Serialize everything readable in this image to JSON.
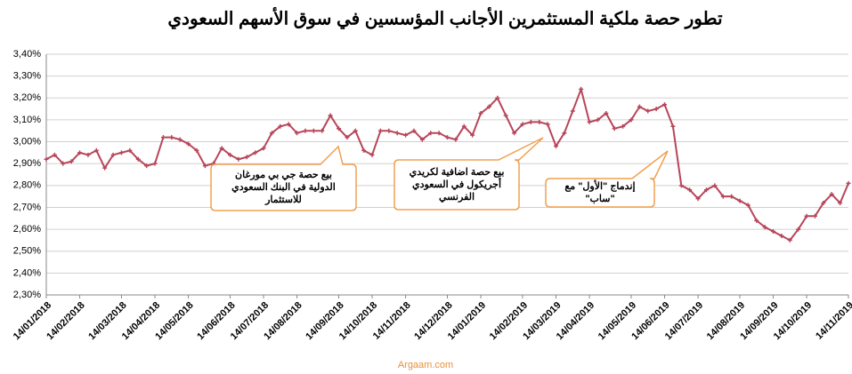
{
  "chart_data": {
    "type": "line",
    "title": "تطور حصة ملكية المستثمرين الأجانب المؤسسين في سوق الأسهم السعودي",
    "footer": "Argaam.com",
    "categories": [
      "14/01/2018",
      null,
      null,
      null,
      "14/02/2018",
      null,
      null,
      null,
      null,
      "14/03/2018",
      null,
      null,
      null,
      "14/04/2018",
      null,
      null,
      null,
      "14/05/2018",
      null,
      null,
      null,
      null,
      "14/06/2018",
      null,
      null,
      null,
      "14/07/2018",
      null,
      null,
      null,
      "14/08/2018",
      null,
      null,
      null,
      null,
      "14/09/2018",
      null,
      null,
      null,
      "14/10/2018",
      null,
      null,
      null,
      "14/11/2018",
      null,
      null,
      null,
      null,
      "14/12/2018",
      null,
      null,
      null,
      "14/01/2019",
      null,
      null,
      null,
      null,
      "14/02/2019",
      null,
      null,
      null,
      "14/03/2019",
      null,
      null,
      null,
      "14/04/2019",
      null,
      null,
      null,
      null,
      "14/05/2019",
      null,
      null,
      null,
      "14/06/2019",
      null,
      null,
      null,
      "14/07/2019",
      null,
      null,
      null,
      null,
      "14/08/2019",
      null,
      null,
      null,
      "14/09/2019",
      null,
      null,
      null,
      "14/10/2019",
      null,
      null,
      null,
      null,
      "14/11/2019"
    ],
    "series": [
      {
        "name": null,
        "color": "#b8455a",
        "values": [
          2.92,
          2.94,
          2.9,
          2.91,
          2.95,
          2.94,
          2.96,
          2.88,
          2.94,
          2.95,
          2.96,
          2.92,
          2.89,
          2.9,
          3.02,
          3.02,
          3.01,
          2.99,
          2.96,
          2.89,
          2.9,
          2.97,
          2.94,
          2.92,
          2.93,
          2.95,
          2.97,
          3.04,
          3.07,
          3.08,
          3.04,
          3.05,
          3.05,
          3.05,
          3.12,
          3.06,
          3.02,
          3.05,
          2.96,
          2.94,
          3.05,
          3.05,
          3.04,
          3.03,
          3.05,
          3.01,
          3.04,
          3.04,
          3.02,
          3.01,
          3.07,
          3.03,
          3.13,
          3.16,
          3.2,
          3.12,
          3.04,
          3.08,
          3.09,
          3.09,
          3.08,
          2.98,
          3.04,
          3.14,
          3.24,
          3.09,
          3.1,
          3.13,
          3.06,
          3.07,
          3.1,
          3.16,
          3.14,
          3.15,
          3.17,
          3.07,
          2.8,
          2.78,
          2.74,
          2.78,
          2.8,
          2.75,
          2.75,
          2.73,
          2.71,
          2.64,
          2.61,
          2.59,
          2.57,
          2.55,
          2.6,
          2.66,
          2.66,
          2.72,
          2.76,
          2.72,
          2.81
        ]
      }
    ],
    "ylim": [
      2.3,
      3.4
    ],
    "yticks": [
      {
        "value": 2.3,
        "label": "2,30%"
      },
      {
        "value": 2.4,
        "label": "2,40%"
      },
      {
        "value": 2.5,
        "label": "2,50%"
      },
      {
        "value": 2.6,
        "label": "2,60%"
      },
      {
        "value": 2.7,
        "label": "2,70%"
      },
      {
        "value": 2.8,
        "label": "2,80%"
      },
      {
        "value": 2.9,
        "label": "2,90%"
      },
      {
        "value": 3.0,
        "label": "3,00%"
      },
      {
        "value": 3.1,
        "label": "3,10%"
      },
      {
        "value": 3.2,
        "label": "3,20%"
      },
      {
        "value": 3.3,
        "label": "3,30%"
      },
      {
        "value": 3.4,
        "label": "3,40%"
      }
    ],
    "grid": true,
    "annotations": [
      {
        "lines": [
          "بيع حصة جي بي مورغان",
          "الدولية في البنك السعودي",
          "للاستثمار"
        ]
      },
      {
        "lines": [
          "بيع حصة  اضافية لكريدي",
          "أجريكول في السعودي",
          "الفرنسي"
        ]
      },
      {
        "lines": [
          "إندماج \"الأول\" مع",
          "\"ساب\""
        ]
      }
    ]
  }
}
